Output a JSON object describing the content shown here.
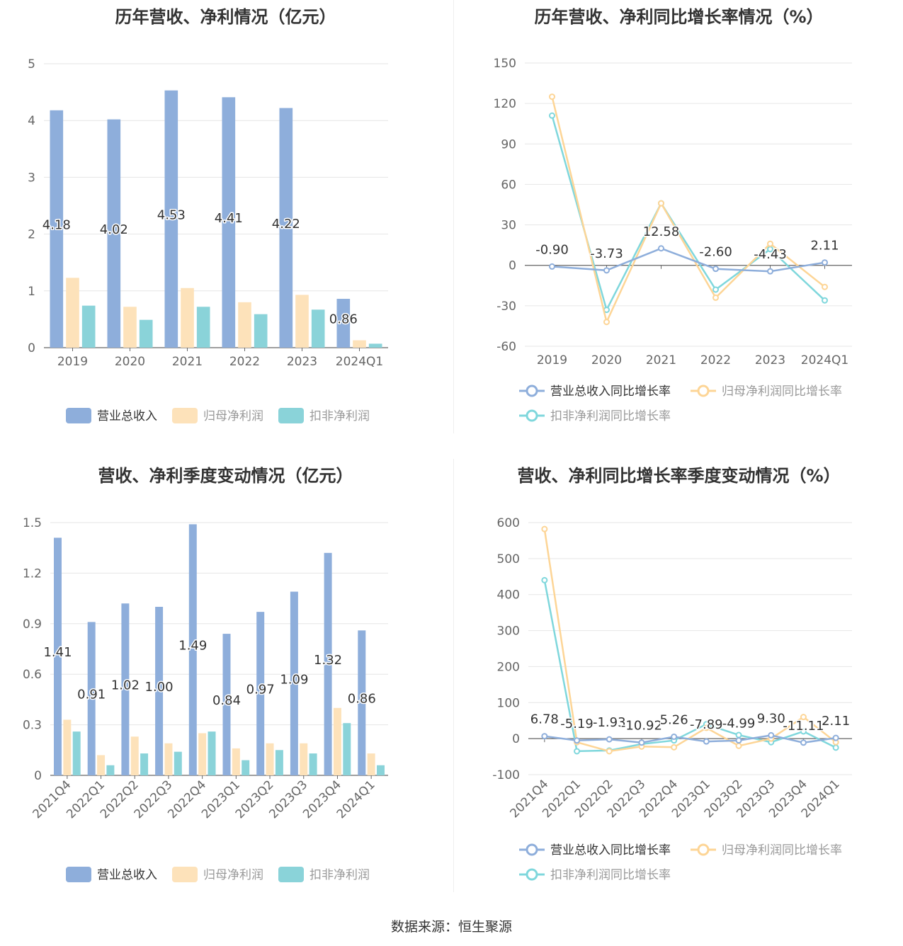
{
  "source": "数据来源：恒生聚源",
  "chart_data": [
    {
      "id": "annual-bars",
      "type": "bar",
      "title": "历年营收、净利情况（亿元）",
      "categories": [
        "2019",
        "2020",
        "2021",
        "2022",
        "2023",
        "2024Q1"
      ],
      "ylim": [
        0,
        5
      ],
      "yticks": [
        0,
        1,
        2,
        3,
        4,
        5
      ],
      "grid": true,
      "legend_position": "bottom",
      "series": [
        {
          "name": "营业总收入",
          "color": "#8eaedb",
          "values": [
            4.18,
            4.02,
            4.53,
            4.41,
            4.22,
            0.86
          ],
          "labels": [
            "4.18",
            "4.02",
            "4.53",
            "4.41",
            "4.22",
            "0.86"
          ]
        },
        {
          "name": "归母净利润",
          "color": "#fde2ba",
          "values": [
            1.23,
            0.72,
            1.05,
            0.8,
            0.93,
            0.13
          ]
        },
        {
          "name": "扣非净利润",
          "color": "#8ad3d9",
          "values": [
            0.74,
            0.49,
            0.72,
            0.59,
            0.67,
            0.07
          ]
        }
      ]
    },
    {
      "id": "annual-growth",
      "type": "line",
      "title": "历年营收、净利同比增长率情况（%）",
      "categories": [
        "2019",
        "2020",
        "2021",
        "2022",
        "2023",
        "2024Q1"
      ],
      "ylim": [
        -60,
        150
      ],
      "yticks": [
        -60,
        -30,
        0,
        30,
        60,
        90,
        120,
        150
      ],
      "grid": true,
      "legend_position": "bottom",
      "series": [
        {
          "name": "营业总收入同比增长率",
          "color": "#8eaedb",
          "values": [
            -0.9,
            -3.73,
            12.58,
            -2.6,
            -4.43,
            2.11
          ],
          "labels": [
            "-0.90",
            "-3.73",
            "12.58",
            "-2.60",
            "-4.43",
            "2.11"
          ]
        },
        {
          "name": "归母净利润同比增长率",
          "color": "#fdd596",
          "values": [
            125,
            -42,
            46,
            -24,
            16,
            -16
          ]
        },
        {
          "name": "扣非净利润同比增长率",
          "color": "#7fd7dc",
          "values": [
            111,
            -33,
            46,
            -18,
            12,
            -26
          ]
        }
      ]
    },
    {
      "id": "quarterly-bars",
      "type": "bar",
      "title": "营收、净利季度变动情况（亿元）",
      "categories": [
        "2021Q4",
        "2022Q1",
        "2022Q2",
        "2022Q3",
        "2022Q4",
        "2023Q1",
        "2023Q2",
        "2023Q3",
        "2023Q4",
        "2024Q1"
      ],
      "ylim": [
        0,
        1.5
      ],
      "yticks": [
        0,
        0.3,
        0.6,
        0.9,
        1.2,
        1.5
      ],
      "grid": true,
      "legend_position": "bottom",
      "series": [
        {
          "name": "营业总收入",
          "color": "#8eaedb",
          "values": [
            1.41,
            0.91,
            1.02,
            1.0,
            1.49,
            0.84,
            0.97,
            1.09,
            1.32,
            0.86
          ],
          "labels": [
            "1.41",
            "0.91",
            "1.02",
            "1.00",
            "1.49",
            "0.84",
            "0.97",
            "1.09",
            "1.32",
            "0.86"
          ]
        },
        {
          "name": "归母净利润",
          "color": "#fde2ba",
          "values": [
            0.33,
            0.12,
            0.23,
            0.19,
            0.25,
            0.16,
            0.19,
            0.19,
            0.4,
            0.13
          ]
        },
        {
          "name": "扣非净利润",
          "color": "#8ad3d9",
          "values": [
            0.26,
            0.06,
            0.13,
            0.14,
            0.26,
            0.09,
            0.15,
            0.13,
            0.31,
            0.06
          ]
        }
      ]
    },
    {
      "id": "quarterly-growth",
      "type": "line",
      "title": "营收、净利同比增长率季度变动情况（%）",
      "categories": [
        "2021Q4",
        "2022Q1",
        "2022Q2",
        "2022Q3",
        "2022Q4",
        "2023Q1",
        "2023Q2",
        "2023Q3",
        "2023Q4",
        "2024Q1"
      ],
      "ylim": [
        -100,
        600
      ],
      "yticks": [
        -100,
        0,
        100,
        200,
        300,
        400,
        500,
        600
      ],
      "grid": true,
      "legend_position": "bottom",
      "series": [
        {
          "name": "营业总收入同比增长率",
          "color": "#8eaedb",
          "values": [
            6.78,
            -5.19,
            -1.93,
            -10.92,
            5.26,
            -7.89,
            -4.99,
            9.3,
            -11.11,
            2.11
          ],
          "labels": [
            "6.78",
            "-5.19",
            "-1.93",
            "-10.92",
            "5.26",
            "-7.89",
            "-4.99",
            "9.30",
            "-11.11",
            "2.11"
          ]
        },
        {
          "name": "归母净利润同比增长率",
          "color": "#fdd596",
          "values": [
            582,
            -10,
            -35,
            -22,
            -24,
            30,
            -20,
            0,
            60,
            -10
          ]
        },
        {
          "name": "扣非净利润同比增长率",
          "color": "#7fd7dc",
          "values": [
            440,
            -35,
            -33,
            -15,
            -5,
            40,
            10,
            -10,
            20,
            -25
          ]
        }
      ]
    }
  ]
}
